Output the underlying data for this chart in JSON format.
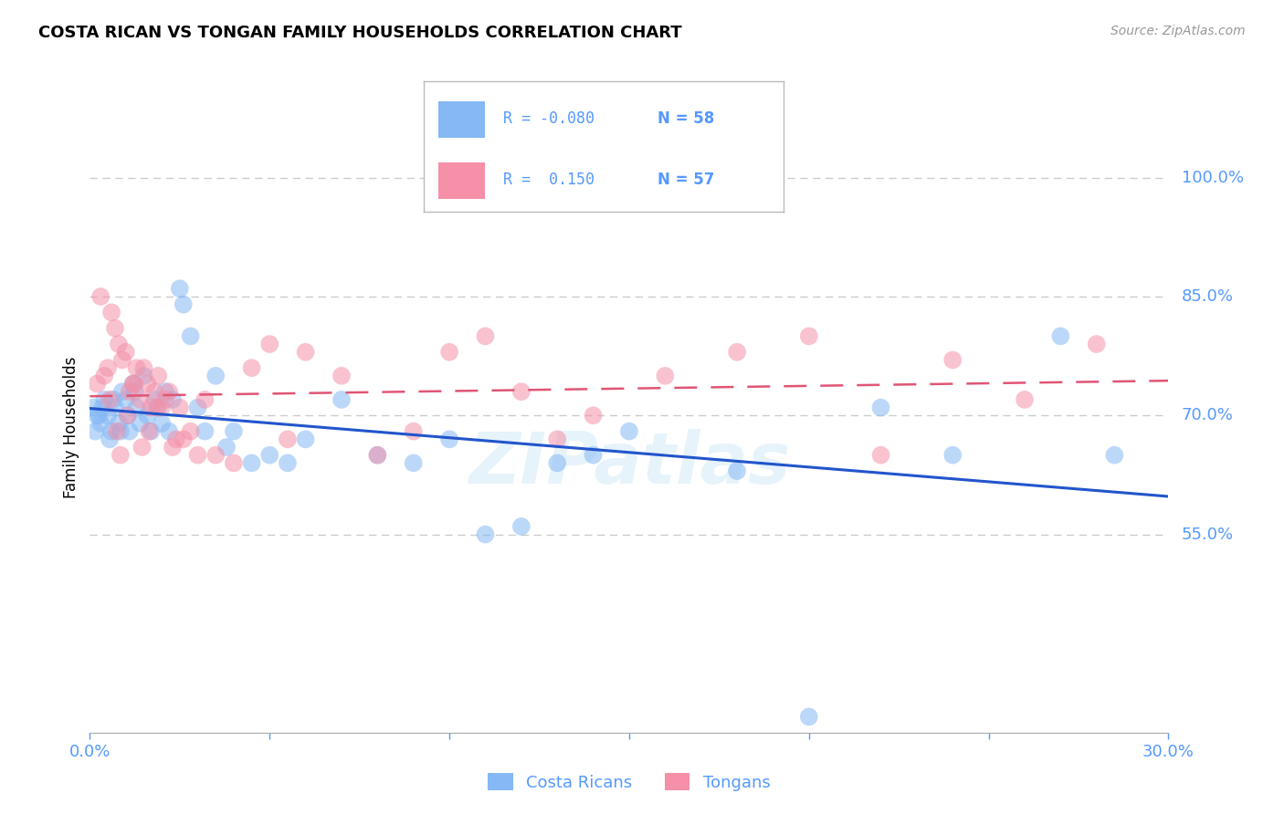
{
  "title": "COSTA RICAN VS TONGAN FAMILY HOUSEHOLDS CORRELATION CHART",
  "source": "Source: ZipAtlas.com",
  "ylabel": "Family Households",
  "xlim": [
    0.0,
    30.0
  ],
  "ylim": [
    30.0,
    107.0
  ],
  "yticks_right": [
    55.0,
    70.0,
    85.0,
    100.0
  ],
  "ytick_labels_right": [
    "55.0%",
    "70.0%",
    "85.0%",
    "100.0%"
  ],
  "grid_color": "#cccccc",
  "background_color": "#ffffff",
  "watermark": "ZIPatlas",
  "costa_ricans_color": "#85b8f5",
  "tongans_color": "#f590a8",
  "trend_blue_color": "#2255cc",
  "trend_pink_color": "#e05575",
  "axis_label_color": "#5599ff",
  "tick_color": "#5599ff",
  "costa_ricans_x": [
    0.1,
    0.2,
    0.3,
    0.4,
    0.5,
    0.6,
    0.7,
    0.8,
    0.9,
    1.0,
    1.1,
    1.2,
    1.3,
    1.4,
    1.5,
    1.6,
    1.7,
    1.8,
    1.9,
    2.0,
    2.1,
    2.2,
    2.3,
    2.5,
    2.6,
    2.8,
    3.0,
    3.2,
    3.5,
    3.8,
    4.0,
    4.5,
    5.0,
    5.5,
    6.0,
    7.0,
    8.0,
    9.0,
    10.0,
    11.0,
    12.0,
    13.0,
    14.0,
    15.0,
    18.0,
    20.0,
    22.0,
    24.0,
    27.0,
    28.5,
    0.15,
    0.25,
    0.35,
    0.55,
    0.65,
    0.85,
    1.05,
    1.25
  ],
  "costa_ricans_y": [
    71,
    70,
    69,
    72,
    70,
    68,
    71,
    69,
    73,
    72,
    68,
    74,
    71,
    69,
    75,
    70,
    68,
    72,
    71,
    69,
    73,
    68,
    72,
    86,
    84,
    80,
    71,
    68,
    75,
    66,
    68,
    64,
    65,
    64,
    67,
    72,
    65,
    64,
    67,
    55,
    56,
    64,
    65,
    68,
    63,
    32,
    71,
    65,
    80,
    65,
    68,
    70,
    71,
    67,
    72,
    68,
    70,
    73
  ],
  "costa_ricans_size": [
    200,
    200,
    200,
    200,
    200,
    200,
    200,
    200,
    200,
    200,
    200,
    200,
    200,
    200,
    200,
    200,
    200,
    200,
    200,
    200,
    200,
    200,
    200,
    200,
    200,
    200,
    200,
    200,
    200,
    200,
    200,
    200,
    200,
    200,
    200,
    200,
    200,
    200,
    200,
    200,
    200,
    200,
    200,
    200,
    200,
    200,
    200,
    200,
    200,
    200,
    200,
    200,
    200,
    200,
    200,
    200,
    200,
    200
  ],
  "tongans_x": [
    0.2,
    0.3,
    0.5,
    0.6,
    0.7,
    0.8,
    0.9,
    1.0,
    1.1,
    1.2,
    1.3,
    1.4,
    1.5,
    1.6,
    1.7,
    1.8,
    1.9,
    2.0,
    2.1,
    2.2,
    2.3,
    2.4,
    2.5,
    2.6,
    2.8,
    3.0,
    3.2,
    3.5,
    4.0,
    4.5,
    5.0,
    5.5,
    6.0,
    7.0,
    8.0,
    9.0,
    10.0,
    11.0,
    12.0,
    13.0,
    14.0,
    16.0,
    18.0,
    20.0,
    22.0,
    24.0,
    26.0,
    28.0,
    0.4,
    0.55,
    0.75,
    0.85,
    1.05,
    1.25,
    1.45,
    1.65,
    1.85
  ],
  "tongans_y": [
    74,
    85,
    76,
    83,
    81,
    79,
    77,
    78,
    73,
    74,
    76,
    72,
    76,
    74,
    71,
    73,
    75,
    71,
    72,
    73,
    66,
    67,
    71,
    67,
    68,
    65,
    72,
    65,
    64,
    76,
    79,
    67,
    78,
    75,
    65,
    68,
    78,
    80,
    73,
    67,
    70,
    75,
    78,
    80,
    65,
    77,
    72,
    79,
    75,
    72,
    68,
    65,
    70,
    74,
    66,
    68,
    71
  ],
  "tongans_size": [
    200,
    200,
    200,
    200,
    200,
    200,
    200,
    200,
    200,
    200,
    200,
    200,
    200,
    200,
    200,
    200,
    200,
    200,
    200,
    200,
    200,
    200,
    200,
    200,
    200,
    200,
    200,
    200,
    200,
    200,
    200,
    200,
    200,
    200,
    200,
    200,
    200,
    200,
    200,
    200,
    200,
    200,
    200,
    200,
    200,
    200,
    200,
    200,
    200,
    200,
    200,
    200,
    200,
    200,
    200,
    200,
    200
  ]
}
